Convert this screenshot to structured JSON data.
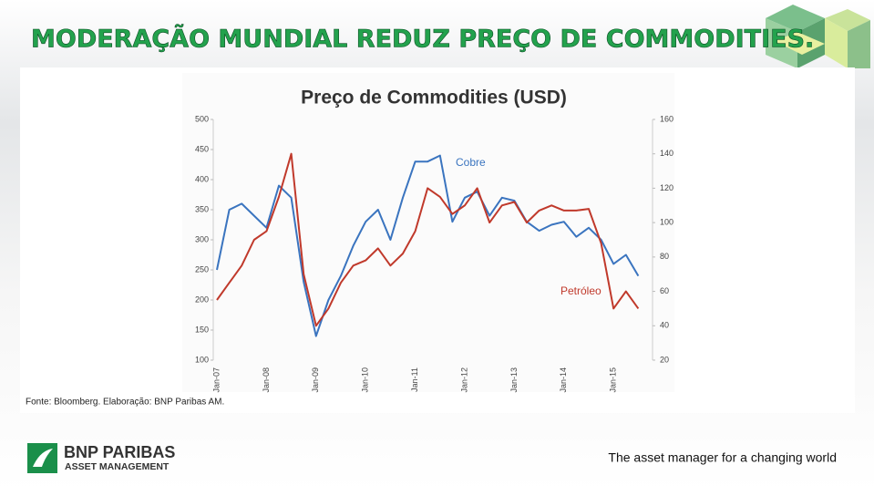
{
  "header": {
    "title": "MODERAÇÃO MUNDIAL REDUZ PREÇO DE COMMODITIES."
  },
  "chart_data": {
    "type": "line",
    "title": "Preço de Commodities (USD)",
    "categories": [
      "Jan-07",
      null,
      null,
      null,
      "Jan-08",
      null,
      null,
      null,
      "Jan-09",
      null,
      null,
      null,
      "Jan-10",
      null,
      null,
      null,
      "Jan-11",
      null,
      null,
      null,
      "Jan-12",
      null,
      null,
      null,
      "Jan-13",
      null,
      null,
      null,
      "Jan-14",
      null,
      null,
      null,
      "Jan-15",
      null,
      null
    ],
    "series": [
      {
        "name": "Cobre",
        "color": "#3a74bf",
        "axis": "y",
        "values": [
          250,
          350,
          360,
          340,
          320,
          390,
          370,
          230,
          140,
          200,
          240,
          290,
          330,
          350,
          300,
          370,
          430,
          430,
          440,
          330,
          370,
          380,
          340,
          370,
          365,
          330,
          315,
          325,
          330,
          305,
          320,
          300,
          260,
          275,
          240
        ]
      },
      {
        "name": "Petróleo",
        "color": "#c0392b",
        "axis": "y2",
        "values": [
          55,
          65,
          75,
          90,
          95,
          115,
          140,
          70,
          40,
          50,
          65,
          75,
          78,
          85,
          75,
          82,
          95,
          120,
          115,
          105,
          110,
          120,
          100,
          110,
          112,
          100,
          107,
          110,
          107,
          107,
          108,
          88,
          50,
          60,
          50
        ]
      }
    ],
    "ylim": [
      100,
      500
    ],
    "yticks": [
      100,
      150,
      200,
      250,
      300,
      350,
      400,
      450,
      500
    ],
    "y2lim": [
      20,
      160
    ],
    "y2ticks": [
      20,
      40,
      60,
      80,
      100,
      120,
      140,
      160
    ],
    "grid": false
  },
  "source": "Fonte: Bloomberg. Elaboração: BNP Paribas AM.",
  "footer": {
    "brand": "BNP PARIBAS",
    "division": "ASSET MANAGEMENT",
    "tagline": "The asset manager for a changing world"
  }
}
